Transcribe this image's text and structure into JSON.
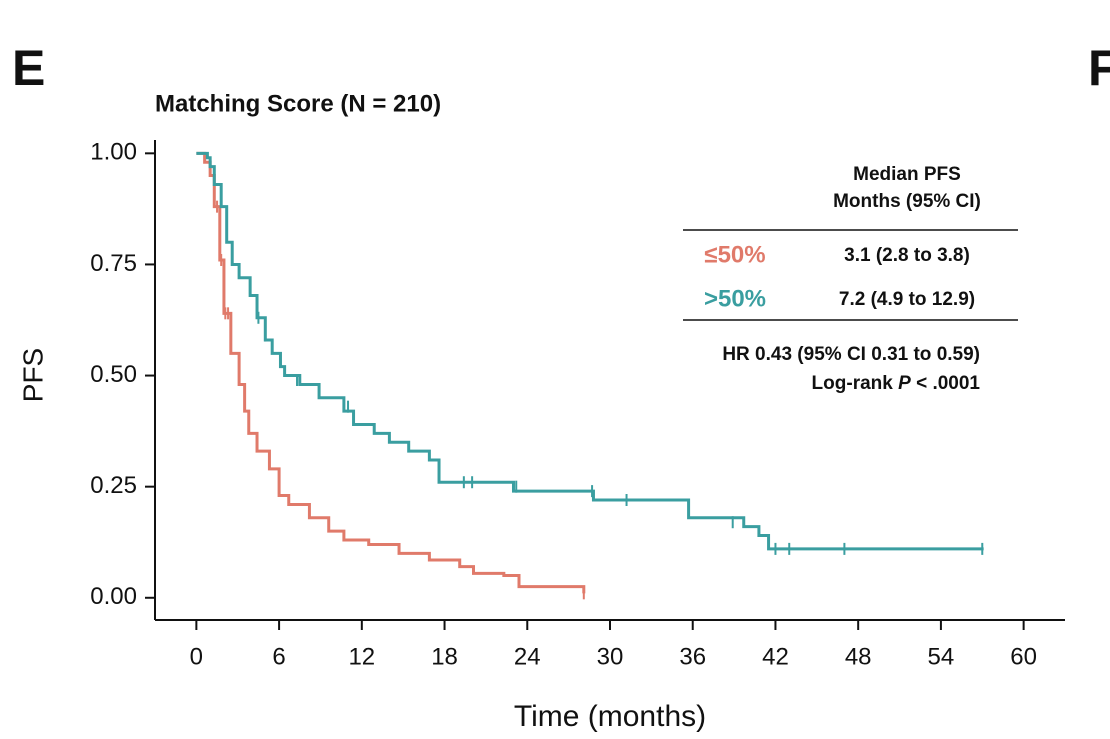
{
  "chart_data": {
    "type": "step",
    "panel_label": "E",
    "next_panel_label": "F",
    "title": "Matching Score (N = 210)",
    "x_label": "Time (months)",
    "y_label": "PFS",
    "xlim": [
      -3,
      63
    ],
    "ylim": [
      -0.05,
      1.03
    ],
    "xticks": [
      0,
      6,
      12,
      18,
      24,
      30,
      36,
      42,
      48,
      54,
      60
    ],
    "yticks": [
      {
        "value": 0,
        "label": "0.00"
      },
      {
        "value": 0.25,
        "label": "0.25"
      },
      {
        "value": 0.5,
        "label": "0.50"
      },
      {
        "value": 0.75,
        "label": "0.75"
      },
      {
        "value": 1,
        "label": "1.00"
      }
    ],
    "series": [
      {
        "name": "≤50%",
        "color": "#e07a6a",
        "median": "3.1 (2.8 to 3.8)",
        "x": [
          0,
          0.6,
          1.0,
          1.3,
          1.7,
          2.0,
          2.5,
          3.1,
          3.5,
          3.8,
          4.4,
          5.3,
          6.0,
          6.7,
          8.2,
          9.6,
          10.7,
          12.5,
          14.7,
          16.9,
          19.1,
          20.1,
          22.3,
          23.4,
          28.1
        ],
        "values": [
          1,
          0.98,
          0.95,
          0.88,
          0.76,
          0.64,
          0.55,
          0.48,
          0.42,
          0.37,
          0.33,
          0.29,
          0.23,
          0.21,
          0.18,
          0.15,
          0.13,
          0.12,
          0.1,
          0.085,
          0.07,
          0.055,
          0.05,
          0.025,
          0.01
        ],
        "censor": {
          "x": [
            1.5,
            1.8,
            2.1,
            2.3,
            28.1
          ],
          "values": [
            0.88,
            0.76,
            0.64,
            0.64,
            0.01
          ]
        }
      },
      {
        "name": ">50%",
        "color": "#3a9ea0",
        "median": "7.2 (4.9 to 12.9)",
        "x": [
          0,
          0.8,
          1.0,
          1.3,
          1.8,
          2.2,
          2.6,
          3.1,
          3.9,
          4.4,
          5.0,
          5.5,
          6.1,
          6.4,
          7.5,
          8.9,
          10.7,
          11.4,
          12.9,
          14.0,
          15.4,
          16.9,
          17.6,
          23.0,
          28.8,
          35.7,
          39.7,
          40.8,
          41.5,
          57.1
        ],
        "values": [
          1,
          0.99,
          0.97,
          0.93,
          0.88,
          0.8,
          0.75,
          0.72,
          0.68,
          0.63,
          0.58,
          0.55,
          0.52,
          0.5,
          0.48,
          0.45,
          0.42,
          0.39,
          0.37,
          0.35,
          0.33,
          0.31,
          0.26,
          0.24,
          0.22,
          0.18,
          0.16,
          0.14,
          0.11,
          0.11
        ],
        "censor": {
          "x": [
            4.5,
            5.0,
            7.3,
            11.0,
            19.4,
            20.0,
            23.2,
            28.7,
            31.2,
            38.9,
            42.0,
            43.0,
            47.0,
            57.0
          ],
          "values": [
            0.63,
            0.59,
            0.49,
            0.43,
            0.26,
            0.26,
            0.25,
            0.24,
            0.22,
            0.17,
            0.11,
            0.11,
            0.11,
            0.11
          ]
        }
      }
    ],
    "table_header": [
      "Median PFS",
      "Months (95% CI)"
    ],
    "hr_text": "HR 0.43 (95% CI 0.31 to 0.59)",
    "log_rank": {
      "prefix": "Log-rank",
      "italic": "P",
      "suffix": "< .0001"
    }
  }
}
